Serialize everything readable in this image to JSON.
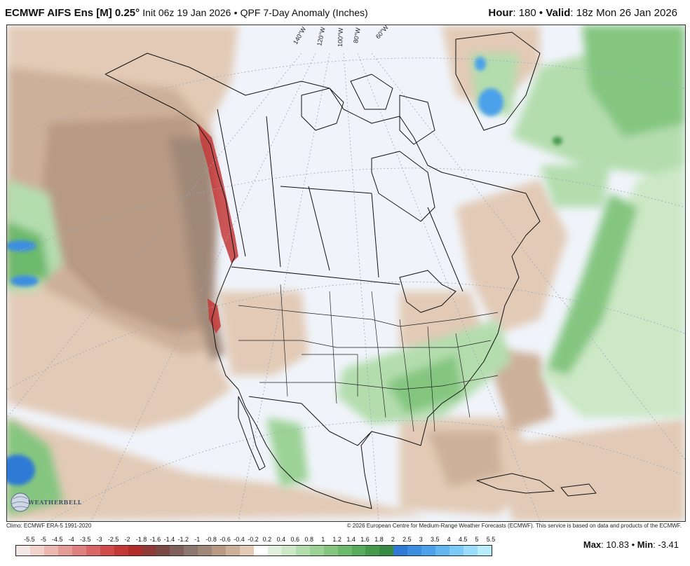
{
  "header": {
    "model": "ECMWF AIFS Ens [M] 0.25",
    "degree": "°",
    "init": "Init 06z 19 Jan 2026",
    "bullet": "•",
    "product": "QPF 7-Day Anomaly (Inches)",
    "hour_label": "Hour",
    "hour_value": ": 180",
    "valid_label": "Valid",
    "valid_value": ": 18z Mon 26 Jan 2026"
  },
  "map": {
    "longitude_labels": [
      "140°W",
      "120°W",
      "100°W",
      "80°W",
      "60°W"
    ],
    "logo_text": "WEATHERBELL"
  },
  "footer": {
    "climo": "Climo: ECMWF ERA-5 1991-2020",
    "copyright": "© 2026 European Centre for Medium-Range Weather Forecasts (ECMWF). This service is based on data and products of the ECMWF.",
    "max_label": "Max",
    "max_value": ": 10.83",
    "min_label": "Min",
    "min_value": ": -3.41"
  },
  "colorbar": {
    "labels": [
      "-5.5",
      "-5",
      "-4.5",
      "-4",
      "-3.5",
      "-3",
      "-2.5",
      "-2",
      "-1.8",
      "-1.6",
      "-1.4",
      "-1.2",
      "-1",
      "-0.8",
      "-0.6",
      "-0.4",
      "-0.2",
      "0.2",
      "0.4",
      "0.6",
      "0.8",
      "1",
      "1.2",
      "1.4",
      "1.6",
      "1.8",
      "2",
      "2.5",
      "3",
      "3.5",
      "4",
      "4.5",
      "5",
      "5.5"
    ],
    "colors": [
      "#f4e8e4",
      "#f0d4cc",
      "#eab8b0",
      "#e49c96",
      "#de8080",
      "#d86666",
      "#d04c4c",
      "#c43838",
      "#b22c2c",
      "#8e3a36",
      "#7a4a44",
      "#80605a",
      "#8c7670",
      "#a08878",
      "#b89a84",
      "#cdb09a",
      "#e2cab6",
      "#ffffff",
      "#e0f0dc",
      "#cce8c6",
      "#b4ddae",
      "#9cd296",
      "#84c680",
      "#6cba6c",
      "#58ab5c",
      "#469a4e",
      "#3a8a46",
      "#2e7ad4",
      "#3c8ee0",
      "#4ca2ea",
      "#62b6f0",
      "#7ccaf6",
      "#9adcfa",
      "#b8eefc"
    ]
  }
}
